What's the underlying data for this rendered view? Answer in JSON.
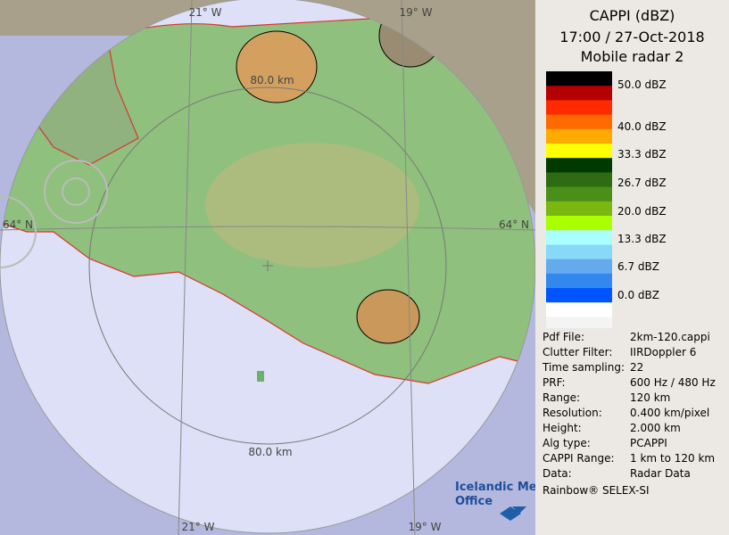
{
  "title": {
    "product": "CAPPI (dBZ)",
    "time": "17:00 / 27-Oct-2018",
    "radar": "Mobile radar 2"
  },
  "map_labels": {
    "lon_top_left": "21° W",
    "lon_top_right": "19° W",
    "lat_left": "64° N",
    "lat_right": "64° N",
    "ring_top": "80.0 km",
    "ring_bottom": "80.0 km",
    "lon_bottom_left": "21° W",
    "lon_bottom_right": "19° W"
  },
  "legend": {
    "colors": [
      "#000000",
      "#b40000",
      "#ff2a00",
      "#ff6a00",
      "#ffaa00",
      "#ffff00",
      "#003a00",
      "#2e6b12",
      "#4a8f1a",
      "#7ab80f",
      "#aaff00",
      "#aaffff",
      "#88d8f8",
      "#66aaee",
      "#3388ee",
      "#0055ff",
      "#ffffff",
      "#f4f4f4"
    ],
    "labels": [
      "50.0 dBZ",
      "40.0 dBZ",
      "33.3 dBZ",
      "26.7 dBZ",
      "20.0 dBZ",
      "13.3 dBZ",
      "6.7 dBZ",
      "0.0 dBZ"
    ]
  },
  "info": [
    [
      "Pdf File:",
      "2km-120.cappi"
    ],
    [
      "Clutter Filter:",
      "IIRDoppler 6"
    ],
    [
      "Time sampling:",
      "22"
    ],
    [
      "PRF:",
      "600 Hz / 480 Hz"
    ],
    [
      "Range:",
      "120 km"
    ],
    [
      "Resolution:",
      "0.400 km/pixel"
    ],
    [
      "Height:",
      "2.000 km"
    ],
    [
      "Alg type:",
      "PCAPPI"
    ],
    [
      "CAPPI Range:",
      "1 km to 120 km"
    ],
    [
      "Data:",
      "Radar Data"
    ]
  ],
  "footer": "Rainbow® SELEX-SI",
  "logo": {
    "line1": "Icelandic Met",
    "line2": "Office"
  }
}
